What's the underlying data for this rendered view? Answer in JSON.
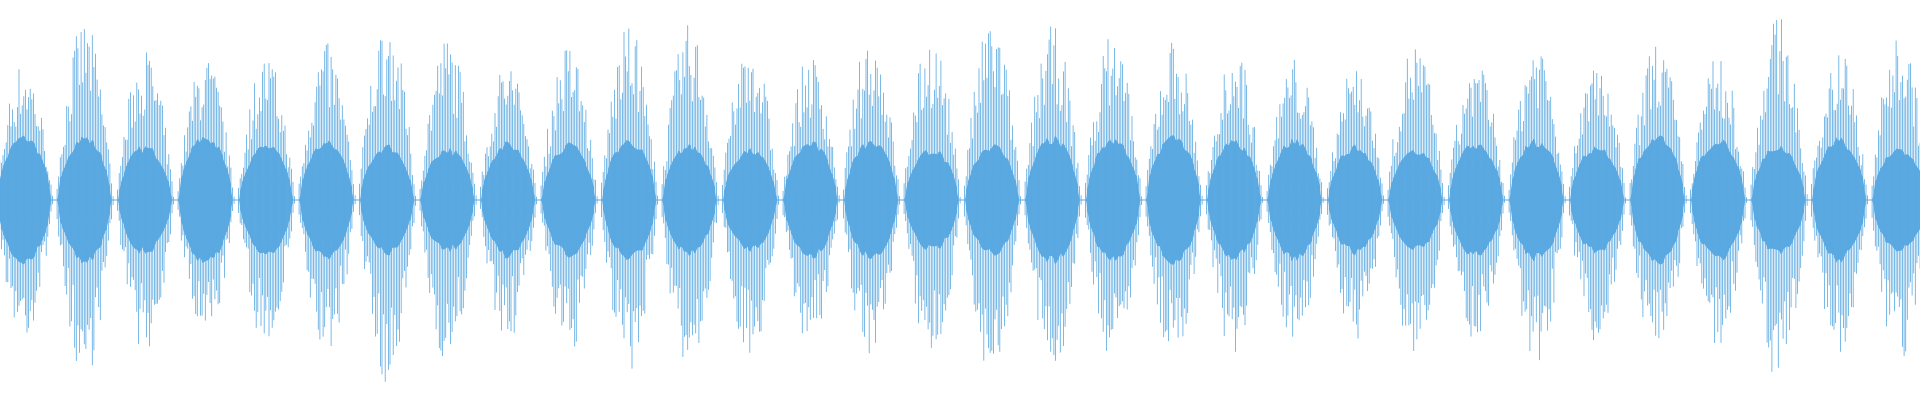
{
  "waveform": {
    "color": "#5aa9e1"
  }
}
